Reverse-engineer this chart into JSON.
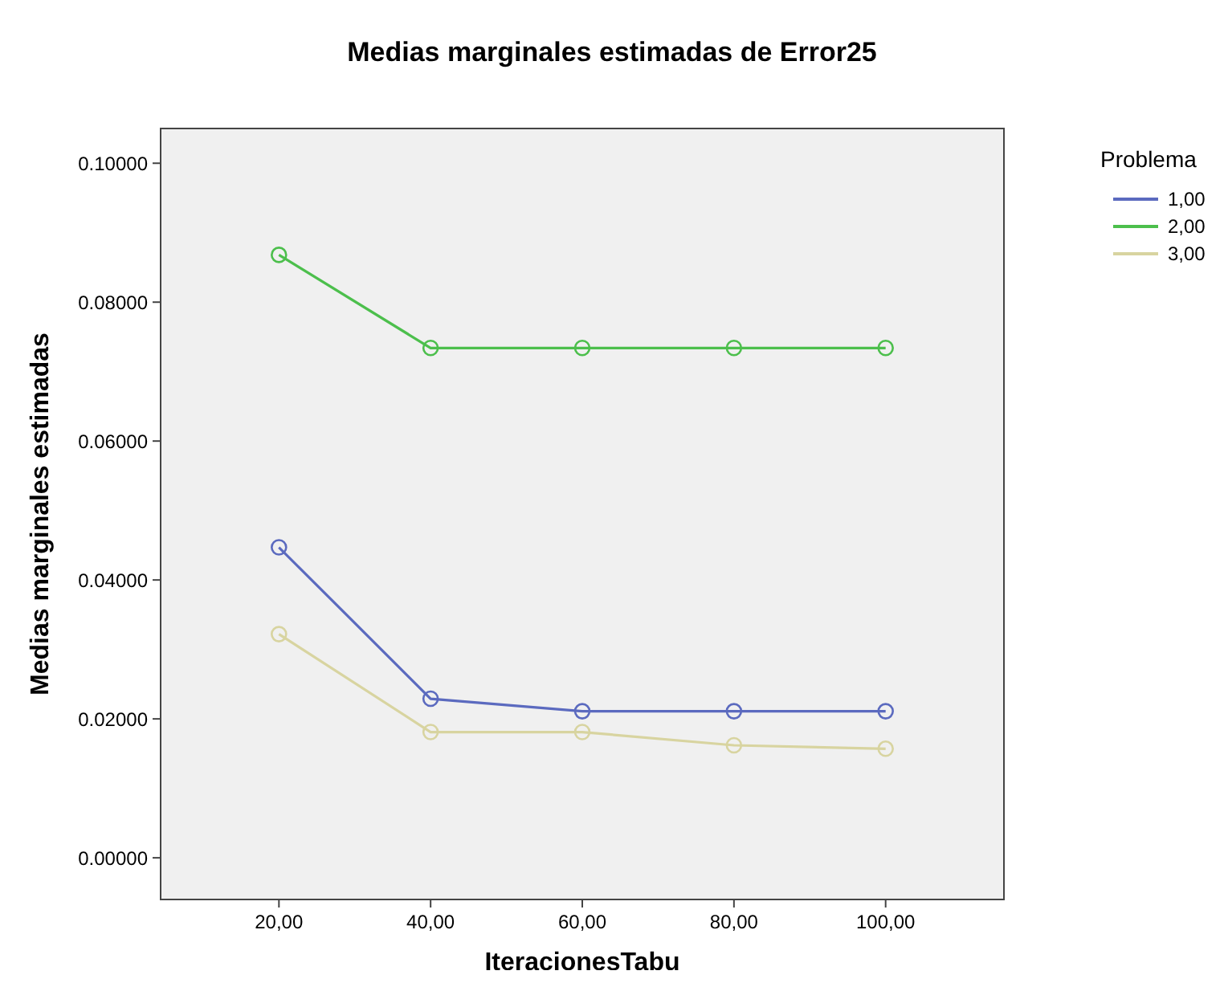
{
  "chart_data": {
    "type": "line",
    "title": "Medias marginales estimadas de Error25",
    "xlabel": "IteracionesTabu",
    "ylabel": "Medias marginales estimadas",
    "legend_title": "Problema",
    "categories": [
      "20,00",
      "40,00",
      "60,00",
      "80,00",
      "100,00"
    ],
    "series": [
      {
        "name": "1,00",
        "color": "#5b6abf",
        "values": [
          0.0447,
          0.0229,
          0.0211,
          0.0211,
          0.0211
        ]
      },
      {
        "name": "2,00",
        "color": "#4cbf4c",
        "values": [
          0.0868,
          0.0734,
          0.0734,
          0.0734,
          0.0734
        ]
      },
      {
        "name": "3,00",
        "color": "#d8d4a0",
        "values": [
          0.0322,
          0.0181,
          0.0181,
          0.0162,
          0.0157
        ]
      }
    ],
    "ylim": [
      -0.006,
      0.105
    ],
    "yticks": [
      {
        "value": 0,
        "label": "0.00000"
      },
      {
        "value": 0.02,
        "label": "0.02000"
      },
      {
        "value": 0.04,
        "label": "0.04000"
      },
      {
        "value": 0.06,
        "label": "0.06000"
      },
      {
        "value": 0.08,
        "label": "0.08000"
      },
      {
        "value": 0.1,
        "label": "0.10000"
      }
    ],
    "grid": false,
    "legend": "top right",
    "marker": "circle",
    "line_style": "solid"
  }
}
